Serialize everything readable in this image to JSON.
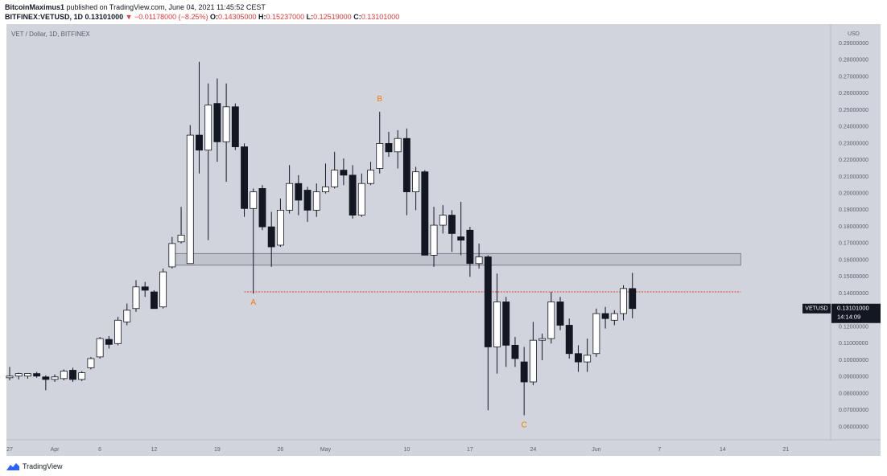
{
  "header": {
    "user": "BitcoinMaximus1",
    "published": "published on TradingView.com, June 04, 2021 11:45:52 CEST",
    "symbol_line": "BITFINEX:VETUSD, 1D",
    "last": "0.13101000",
    "change_arrow": "▼",
    "change": "−0.01178000 (−8.25%)",
    "o_label": "O:",
    "o_val": "0.14305000",
    "h_label": "H:",
    "h_val": "0.15237000",
    "l_label": "L:",
    "l_val": "0.12519000",
    "c_label": "C:",
    "c_val": "0.13101000"
  },
  "footer": {
    "brand": "TradingView"
  },
  "chart_data": {
    "type": "candlestick",
    "title": "VET / Dollar, 1D, BITFINEX",
    "currency": "USD",
    "ylim": [
      0.05,
      0.3
    ],
    "y_ticks": [
      0.06,
      0.07,
      0.08,
      0.09,
      0.1,
      0.11,
      0.12,
      0.13,
      0.14,
      0.15,
      0.16,
      0.17,
      0.18,
      0.19,
      0.2,
      0.21,
      0.22,
      0.23,
      0.24,
      0.25,
      0.26,
      0.27,
      0.28,
      0.29
    ],
    "y_tick_labels": [
      "0.06000000",
      "0.07000000",
      "0.08000000",
      "0.09000000",
      "0.10000000",
      "0.11000000",
      "0.12000000",
      "0.13000000",
      "0.14000000",
      "0.15000000",
      "0.16000000",
      "0.17000000",
      "0.18000000",
      "0.19000000",
      "0.20000000",
      "0.21000000",
      "0.22000000",
      "0.23000000",
      "0.24000000",
      "0.25000000",
      "0.26000000",
      "0.27000000",
      "0.28000000",
      "0.29000000"
    ],
    "x_range": [
      "2021-03-27",
      "2021-06-24"
    ],
    "x_ticks": [
      {
        "date": "2021-03-27",
        "label": "27"
      },
      {
        "date": "2021-04-01",
        "label": "Apr"
      },
      {
        "date": "2021-04-06",
        "label": "6"
      },
      {
        "date": "2021-04-12",
        "label": "12"
      },
      {
        "date": "2021-04-19",
        "label": "19"
      },
      {
        "date": "2021-04-26",
        "label": "26"
      },
      {
        "date": "2021-05-01",
        "label": "May"
      },
      {
        "date": "2021-05-10",
        "label": "10"
      },
      {
        "date": "2021-05-17",
        "label": "17"
      },
      {
        "date": "2021-05-24",
        "label": "24"
      },
      {
        "date": "2021-05-31",
        "label": "Jun"
      },
      {
        "date": "2021-06-07",
        "label": "7"
      },
      {
        "date": "2021-06-14",
        "label": "14"
      },
      {
        "date": "2021-06-21",
        "label": "21"
      }
    ],
    "grid": false,
    "last_price": {
      "label": "VETUSD",
      "value": "0.13101000",
      "countdown": "14:14:09",
      "y": 0.131
    },
    "support_zone": {
      "x_start": "2021-04-14",
      "x_end": "2021-06-16",
      "y_low": 0.157,
      "y_high": 0.164
    },
    "resistance_line": {
      "x_start": "2021-04-22",
      "x_end": "2021-06-16",
      "y": 0.141,
      "color": "#e53935"
    },
    "annotations": [
      {
        "text": "A",
        "date": "2021-04-23",
        "y": 0.1345,
        "color": "#f57c00"
      },
      {
        "text": "B",
        "date": "2021-05-07",
        "y": 0.2565,
        "color": "#f57c00"
      },
      {
        "text": "C",
        "date": "2021-05-23",
        "y": 0.061,
        "color": "#f57c00"
      }
    ],
    "candles": [
      {
        "date": "2021-03-27",
        "o": 0.0895,
        "h": 0.096,
        "l": 0.088,
        "c": 0.0905
      },
      {
        "date": "2021-03-28",
        "o": 0.0905,
        "h": 0.0925,
        "l": 0.0885,
        "c": 0.092
      },
      {
        "date": "2021-03-29",
        "o": 0.0905,
        "h": 0.092,
        "l": 0.089,
        "c": 0.092
      },
      {
        "date": "2021-03-30",
        "o": 0.092,
        "h": 0.093,
        "l": 0.0895,
        "c": 0.0905
      },
      {
        "date": "2021-03-31",
        "o": 0.09,
        "h": 0.091,
        "l": 0.082,
        "c": 0.0885
      },
      {
        "date": "2021-04-01",
        "o": 0.0885,
        "h": 0.0915,
        "l": 0.087,
        "c": 0.09
      },
      {
        "date": "2021-04-02",
        "o": 0.089,
        "h": 0.0945,
        "l": 0.088,
        "c": 0.0935
      },
      {
        "date": "2021-04-03",
        "o": 0.094,
        "h": 0.0955,
        "l": 0.087,
        "c": 0.0885
      },
      {
        "date": "2021-04-04",
        "o": 0.0885,
        "h": 0.0935,
        "l": 0.0875,
        "c": 0.0925
      },
      {
        "date": "2021-04-05",
        "o": 0.0955,
        "h": 0.102,
        "l": 0.0945,
        "c": 0.101
      },
      {
        "date": "2021-04-06",
        "o": 0.102,
        "h": 0.114,
        "l": 0.101,
        "c": 0.113
      },
      {
        "date": "2021-04-07",
        "o": 0.1125,
        "h": 0.1145,
        "l": 0.107,
        "c": 0.1095
      },
      {
        "date": "2021-04-08",
        "o": 0.11,
        "h": 0.126,
        "l": 0.109,
        "c": 0.124
      },
      {
        "date": "2021-04-09",
        "o": 0.123,
        "h": 0.134,
        "l": 0.121,
        "c": 0.13
      },
      {
        "date": "2021-04-10",
        "o": 0.131,
        "h": 0.148,
        "l": 0.129,
        "c": 0.144
      },
      {
        "date": "2021-04-11",
        "o": 0.144,
        "h": 0.147,
        "l": 0.138,
        "c": 0.142
      },
      {
        "date": "2021-04-12",
        "o": 0.141,
        "h": 0.142,
        "l": 0.131,
        "c": 0.131
      },
      {
        "date": "2021-04-13",
        "o": 0.132,
        "h": 0.155,
        "l": 0.131,
        "c": 0.153
      },
      {
        "date": "2021-04-14",
        "o": 0.156,
        "h": 0.174,
        "l": 0.155,
        "c": 0.17
      },
      {
        "date": "2021-04-15",
        "o": 0.171,
        "h": 0.192,
        "l": 0.17,
        "c": 0.175
      },
      {
        "date": "2021-04-16",
        "o": 0.158,
        "h": 0.241,
        "l": 0.158,
        "c": 0.235
      },
      {
        "date": "2021-04-17",
        "o": 0.235,
        "h": 0.279,
        "l": 0.212,
        "c": 0.226
      },
      {
        "date": "2021-04-18",
        "o": 0.226,
        "h": 0.266,
        "l": 0.172,
        "c": 0.253
      },
      {
        "date": "2021-04-19",
        "o": 0.254,
        "h": 0.269,
        "l": 0.219,
        "c": 0.231
      },
      {
        "date": "2021-04-20",
        "o": 0.231,
        "h": 0.266,
        "l": 0.207,
        "c": 0.252
      },
      {
        "date": "2021-04-21",
        "o": 0.252,
        "h": 0.254,
        "l": 0.226,
        "c": 0.228
      },
      {
        "date": "2021-04-22",
        "o": 0.228,
        "h": 0.23,
        "l": 0.186,
        "c": 0.191
      },
      {
        "date": "2021-04-23",
        "o": 0.191,
        "h": 0.203,
        "l": 0.14,
        "c": 0.201
      },
      {
        "date": "2021-04-24",
        "o": 0.203,
        "h": 0.205,
        "l": 0.178,
        "c": 0.18
      },
      {
        "date": "2021-04-25",
        "o": 0.18,
        "h": 0.189,
        "l": 0.156,
        "c": 0.168
      },
      {
        "date": "2021-04-26",
        "o": 0.169,
        "h": 0.197,
        "l": 0.168,
        "c": 0.19
      },
      {
        "date": "2021-04-27",
        "o": 0.19,
        "h": 0.217,
        "l": 0.188,
        "c": 0.206
      },
      {
        "date": "2021-04-28",
        "o": 0.206,
        "h": 0.211,
        "l": 0.187,
        "c": 0.196
      },
      {
        "date": "2021-04-29",
        "o": 0.202,
        "h": 0.204,
        "l": 0.183,
        "c": 0.19
      },
      {
        "date": "2021-04-30",
        "o": 0.19,
        "h": 0.206,
        "l": 0.186,
        "c": 0.201
      },
      {
        "date": "2021-05-01",
        "o": 0.201,
        "h": 0.218,
        "l": 0.2,
        "c": 0.204
      },
      {
        "date": "2021-05-02",
        "o": 0.204,
        "h": 0.225,
        "l": 0.203,
        "c": 0.214
      },
      {
        "date": "2021-05-03",
        "o": 0.214,
        "h": 0.221,
        "l": 0.205,
        "c": 0.211
      },
      {
        "date": "2021-05-04",
        "o": 0.211,
        "h": 0.217,
        "l": 0.185,
        "c": 0.187
      },
      {
        "date": "2021-05-05",
        "o": 0.187,
        "h": 0.212,
        "l": 0.186,
        "c": 0.206
      },
      {
        "date": "2021-05-06",
        "o": 0.206,
        "h": 0.219,
        "l": 0.205,
        "c": 0.214
      },
      {
        "date": "2021-05-07",
        "o": 0.215,
        "h": 0.249,
        "l": 0.212,
        "c": 0.23
      },
      {
        "date": "2021-05-08",
        "o": 0.23,
        "h": 0.237,
        "l": 0.222,
        "c": 0.225
      },
      {
        "date": "2021-05-09",
        "o": 0.225,
        "h": 0.238,
        "l": 0.215,
        "c": 0.233
      },
      {
        "date": "2021-05-10",
        "o": 0.233,
        "h": 0.239,
        "l": 0.187,
        "c": 0.201
      },
      {
        "date": "2021-05-11",
        "o": 0.201,
        "h": 0.216,
        "l": 0.19,
        "c": 0.213
      },
      {
        "date": "2021-05-12",
        "o": 0.213,
        "h": 0.214,
        "l": 0.163,
        "c": 0.163
      },
      {
        "date": "2021-05-13",
        "o": 0.163,
        "h": 0.192,
        "l": 0.156,
        "c": 0.181
      },
      {
        "date": "2021-05-14",
        "o": 0.181,
        "h": 0.193,
        "l": 0.176,
        "c": 0.187
      },
      {
        "date": "2021-05-15",
        "o": 0.187,
        "h": 0.19,
        "l": 0.165,
        "c": 0.176
      },
      {
        "date": "2021-05-16",
        "o": 0.174,
        "h": 0.195,
        "l": 0.163,
        "c": 0.172
      },
      {
        "date": "2021-05-17",
        "o": 0.178,
        "h": 0.18,
        "l": 0.15,
        "c": 0.158
      },
      {
        "date": "2021-05-18",
        "o": 0.158,
        "h": 0.17,
        "l": 0.155,
        "c": 0.162
      },
      {
        "date": "2021-05-19",
        "o": 0.162,
        "h": 0.163,
        "l": 0.07,
        "c": 0.108
      },
      {
        "date": "2021-05-20",
        "o": 0.108,
        "h": 0.152,
        "l": 0.092,
        "c": 0.135
      },
      {
        "date": "2021-05-21",
        "o": 0.135,
        "h": 0.138,
        "l": 0.096,
        "c": 0.109
      },
      {
        "date": "2021-05-22",
        "o": 0.109,
        "h": 0.114,
        "l": 0.096,
        "c": 0.101
      },
      {
        "date": "2021-05-23",
        "o": 0.099,
        "h": 0.108,
        "l": 0.067,
        "c": 0.087
      },
      {
        "date": "2021-05-24",
        "o": 0.087,
        "h": 0.123,
        "l": 0.085,
        "c": 0.112
      },
      {
        "date": "2021-05-25",
        "o": 0.112,
        "h": 0.116,
        "l": 0.1,
        "c": 0.113
      },
      {
        "date": "2021-05-26",
        "o": 0.113,
        "h": 0.141,
        "l": 0.11,
        "c": 0.135
      },
      {
        "date": "2021-05-27",
        "o": 0.135,
        "h": 0.138,
        "l": 0.118,
        "c": 0.121
      },
      {
        "date": "2021-05-28",
        "o": 0.121,
        "h": 0.125,
        "l": 0.101,
        "c": 0.104
      },
      {
        "date": "2021-05-29",
        "o": 0.104,
        "h": 0.109,
        "l": 0.093,
        "c": 0.099
      },
      {
        "date": "2021-05-30",
        "o": 0.099,
        "h": 0.113,
        "l": 0.093,
        "c": 0.103
      },
      {
        "date": "2021-05-31",
        "o": 0.104,
        "h": 0.131,
        "l": 0.102,
        "c": 0.128
      },
      {
        "date": "2021-06-01",
        "o": 0.128,
        "h": 0.132,
        "l": 0.119,
        "c": 0.125
      },
      {
        "date": "2021-06-02",
        "o": 0.124,
        "h": 0.13,
        "l": 0.121,
        "c": 0.128
      },
      {
        "date": "2021-06-03",
        "o": 0.128,
        "h": 0.145,
        "l": 0.124,
        "c": 0.143
      },
      {
        "date": "2021-06-04",
        "o": 0.143,
        "h": 0.1524,
        "l": 0.1252,
        "c": 0.131
      }
    ]
  }
}
